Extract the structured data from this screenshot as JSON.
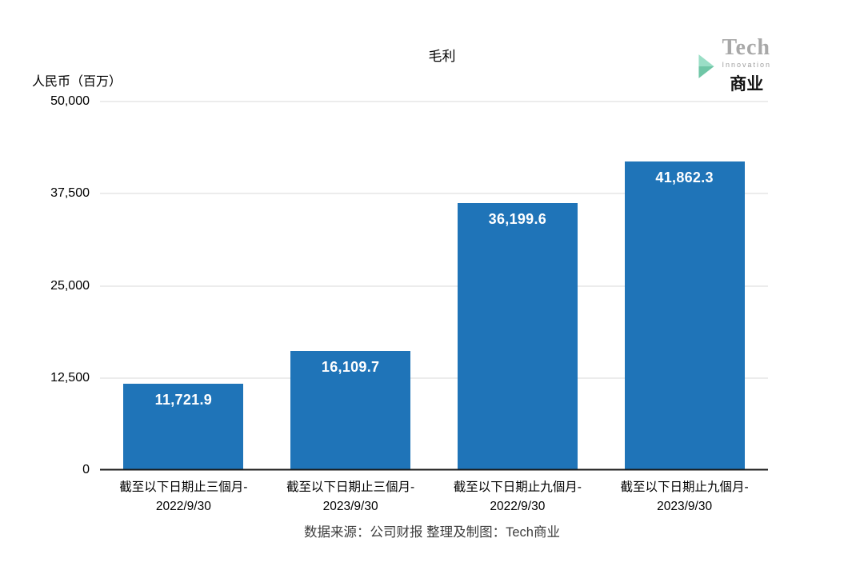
{
  "legend": {
    "items": [
      {
        "label": "毛利",
        "color": "#1f74b8"
      }
    ]
  },
  "logo": {
    "line1": "Tech",
    "line2": "Innovation",
    "line3": "商业",
    "chevron_color_light": "#9adec6",
    "chevron_color_dark": "#6fc6a6"
  },
  "footer": {
    "source": "数据来源：公司财报 整理及制图：Tech商业"
  },
  "chart_data": {
    "type": "bar",
    "series_name": "毛利",
    "categories": [
      "截至以下日期止三個月-\n2022/9/30",
      "截至以下日期止三個月-\n2023/9/30",
      "截至以下日期止九個月-\n2022/9/30",
      "截至以下日期止九個月-\n2023/9/30"
    ],
    "values": [
      11721.9,
      16109.7,
      36199.6,
      41862.3
    ],
    "value_labels": [
      "11,721.9",
      "16,109.7",
      "36,199.6",
      "41,862.3"
    ],
    "bar_color": "#1f74b8",
    "title": "",
    "xlabel": "",
    "ylabel": "人民币（百万）",
    "ylim": [
      0,
      50000
    ],
    "yticks": [
      0,
      12500,
      25000,
      37500,
      50000
    ],
    "ytick_labels": [
      "0",
      "12,500",
      "25,000",
      "37,500",
      "50,000"
    ],
    "grid": true,
    "legend_position": "top-center"
  }
}
